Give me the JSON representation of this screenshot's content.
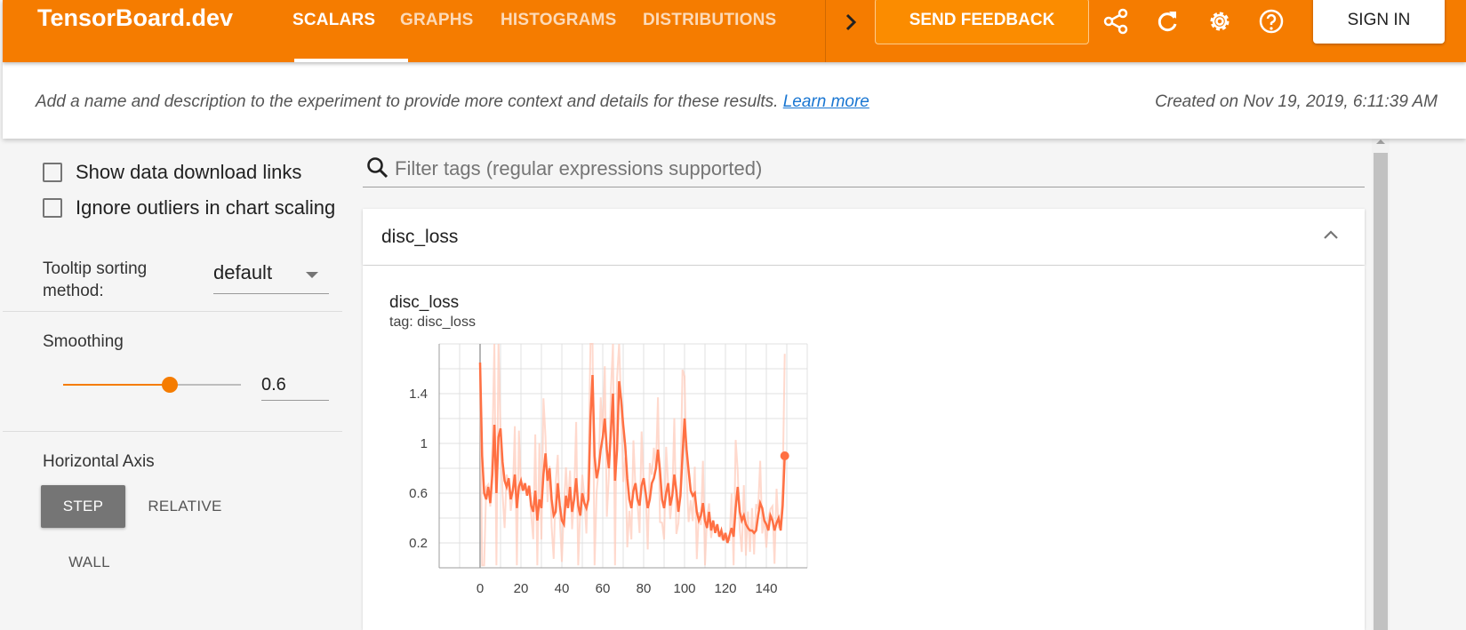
{
  "app": {
    "brand": "TensorBoard.dev"
  },
  "tabs": [
    {
      "label": "SCALARS",
      "active": true
    },
    {
      "label": "GRAPHS",
      "active": false
    },
    {
      "label": "HISTOGRAMS",
      "active": false
    },
    {
      "label": "DISTRIBUTIONS",
      "active": false
    }
  ],
  "toolbar": {
    "feedback_label": "SEND FEEDBACK",
    "signin_label": "SIGN IN",
    "icons": [
      "chevron-right-icon",
      "share-icon",
      "refresh-icon",
      "settings-icon",
      "help-icon"
    ]
  },
  "info": {
    "description": "Add a name and description to the experiment to provide more context and details for these results.",
    "learn_more": "Learn more",
    "created": "Created on Nov 19, 2019, 6:11:39 AM"
  },
  "sidebar": {
    "show_download_links": {
      "label": "Show data download links",
      "checked": false
    },
    "ignore_outliers": {
      "label": "Ignore outliers in chart scaling",
      "checked": false
    },
    "tooltip_sorting": {
      "label": "Tooltip sorting method:",
      "value": "default"
    },
    "smoothing": {
      "title": "Smoothing",
      "value": "0.6",
      "fraction": 0.6
    },
    "horizontal_axis": {
      "title": "Horizontal Axis",
      "options": [
        "STEP",
        "RELATIVE",
        "WALL"
      ],
      "selected": "STEP"
    }
  },
  "search": {
    "placeholder": "Filter tags (regular expressions supported)"
  },
  "category": {
    "title": "disc_loss"
  },
  "card": {
    "title": "disc_loss",
    "tag": "tag: disc_loss"
  },
  "colors": {
    "accent": "#f57c00",
    "smoothed_line": "#ff7043",
    "raw_line": "#ffccbc"
  },
  "chart_data": {
    "type": "line",
    "title": "disc_loss",
    "xlabel": "",
    "ylabel": "",
    "x_ticks": [
      "0",
      "20",
      "40",
      "60",
      "80",
      "100",
      "120",
      "140"
    ],
    "y_ticks": [
      "0.2",
      "0.6",
      "1",
      "1.4"
    ],
    "xlim": [
      -20,
      160
    ],
    "ylim": [
      0,
      1.8
    ],
    "grid": true,
    "series": [
      {
        "x": [
          0,
          1,
          2,
          3,
          4,
          5,
          6,
          7,
          8,
          9,
          10,
          11,
          12,
          13,
          14,
          15,
          16,
          17,
          18,
          19,
          20,
          21,
          22,
          23,
          24,
          25,
          26,
          27,
          28,
          29,
          30,
          31,
          32,
          33,
          34,
          35,
          36,
          37,
          38,
          39,
          40,
          41,
          42,
          43,
          44,
          45,
          46,
          47,
          48,
          49,
          50,
          51,
          52,
          53,
          54,
          55,
          56,
          57,
          58,
          59,
          60,
          61,
          62,
          63,
          64,
          65,
          66,
          67,
          68,
          69,
          70,
          71,
          72,
          73,
          74,
          75,
          76,
          77,
          78,
          79,
          80,
          81,
          82,
          83,
          84,
          85,
          86,
          87,
          88,
          89,
          90,
          91,
          92,
          93,
          94,
          95,
          96,
          97,
          98,
          99,
          100,
          101,
          102,
          103,
          104,
          105,
          106,
          107,
          108,
          109,
          110,
          111,
          112,
          113,
          114,
          115,
          116,
          117,
          118,
          119,
          120,
          121,
          122,
          123,
          124,
          125,
          126,
          127,
          128,
          129,
          130,
          131,
          132,
          133,
          134,
          135,
          136,
          137,
          138,
          139,
          140,
          141,
          142,
          143,
          144,
          145,
          146,
          147,
          148,
          149
        ],
        "values": [
          1.65,
          0.9,
          0.6,
          0.55,
          0.65,
          0.52,
          0.75,
          1.15,
          0.6,
          1.05,
          1.12,
          0.85,
          0.7,
          0.65,
          0.72,
          0.55,
          0.62,
          0.75,
          0.48,
          0.65,
          0.7,
          0.62,
          0.68,
          0.58,
          0.66,
          0.5,
          0.45,
          0.62,
          0.38,
          0.55,
          0.48,
          0.75,
          0.92,
          0.7,
          0.8,
          0.55,
          0.42,
          0.45,
          0.68,
          0.5,
          0.38,
          0.35,
          0.58,
          0.48,
          0.65,
          0.45,
          0.55,
          0.72,
          0.5,
          0.42,
          0.6,
          0.52,
          0.48,
          0.55,
          1.2,
          1.55,
          0.9,
          0.72,
          0.8,
          0.95,
          1.05,
          1.2,
          0.95,
          0.8,
          1.1,
          1.4,
          0.7,
          0.95,
          1.5,
          1.35,
          1.15,
          0.98,
          0.72,
          0.55,
          0.48,
          0.62,
          0.68,
          0.55,
          0.5,
          0.66,
          0.72,
          0.6,
          0.48,
          0.55,
          0.68,
          0.72,
          0.8,
          0.95,
          0.78,
          0.55,
          0.48,
          0.6,
          0.68,
          0.5,
          0.58,
          0.75,
          0.62,
          0.45,
          0.58,
          0.9,
          1.2,
          0.95,
          0.78,
          0.62,
          0.58,
          0.6,
          0.45,
          0.38,
          0.42,
          0.52,
          0.38,
          0.32,
          0.45,
          0.3,
          0.38,
          0.28,
          0.35,
          0.25,
          0.3,
          0.22,
          0.28,
          0.2,
          0.26,
          0.32,
          0.25,
          0.48,
          0.65,
          0.45,
          0.38,
          0.42,
          0.35,
          0.32,
          0.3,
          0.3,
          0.28,
          0.3,
          0.42,
          0.52,
          0.48,
          0.38,
          0.35,
          0.3,
          0.42,
          0.38,
          0.3,
          0.36,
          0.4,
          0.3,
          0.5,
          0.9
        ]
      }
    ]
  }
}
